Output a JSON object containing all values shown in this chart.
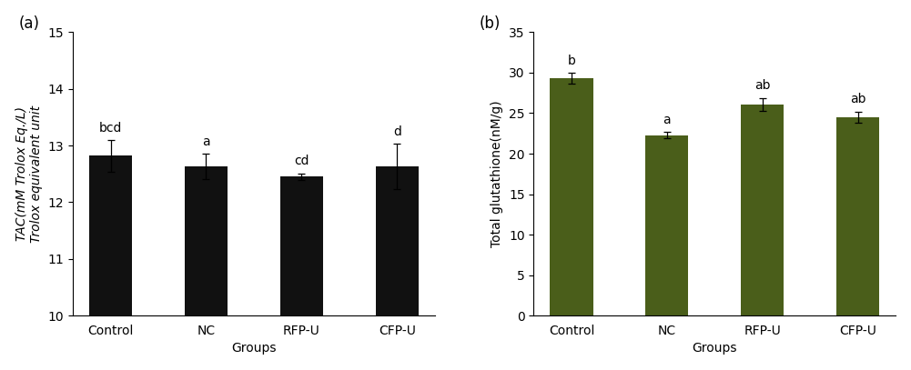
{
  "panel_a": {
    "categories": [
      "Control",
      "NC",
      "RFP-U",
      "CFP-U"
    ],
    "values": [
      12.82,
      12.63,
      12.45,
      12.63
    ],
    "errors": [
      0.28,
      0.22,
      0.06,
      0.4
    ],
    "sig_labels": [
      "bcd",
      "a",
      "cd",
      "d"
    ],
    "bar_color": "#111111",
    "ylabel_line1": "TAC(mM Trolox Eq./L)",
    "ylabel_line2": "Trolox equivalent unit",
    "xlabel": "Groups",
    "ylim": [
      10,
      15
    ],
    "yticks": [
      10,
      11,
      12,
      13,
      14,
      15
    ],
    "panel_label": "(a)"
  },
  "panel_b": {
    "categories": [
      "Control",
      "NC",
      "RFP-U",
      "CFP-U"
    ],
    "values": [
      29.3,
      22.3,
      26.1,
      24.5
    ],
    "errors": [
      0.7,
      0.4,
      0.8,
      0.7
    ],
    "sig_labels": [
      "b",
      "a",
      "ab",
      "ab"
    ],
    "bar_color": "#4a5e1a",
    "ylabel": "Total glutathione(nM/g)",
    "xlabel": "Groups",
    "ylim": [
      0,
      35
    ],
    "yticks": [
      0,
      5,
      10,
      15,
      20,
      25,
      30,
      35
    ],
    "panel_label": "(b)"
  },
  "fig_width": 10.01,
  "fig_height": 4.07,
  "background_color": "#ffffff",
  "font_size": 10,
  "label_font_size": 10,
  "panel_label_font_size": 12,
  "sig_label_font_size": 10,
  "bar_width": 0.45
}
